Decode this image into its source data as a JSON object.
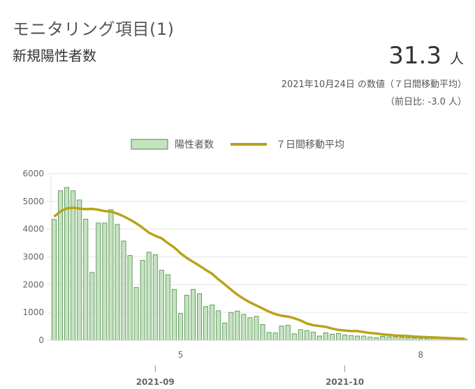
{
  "header": {
    "title": "モニタリング項目(1)",
    "subtitle": "新規陽性者数",
    "value": "31.3",
    "unit": "人",
    "note_date": "2021年10月24日 の数値（７日間移動平均）",
    "note_diff": "（前日比: -3.0 人）"
  },
  "colors": {
    "bar_fill": "#c5e3c0",
    "bar_stroke": "#4a8a45",
    "line": "#b8a31a",
    "grid": "#e6e6e6"
  },
  "chart_data": {
    "type": "bar",
    "title": "",
    "legend_position": "top-center",
    "series": [
      {
        "name": "陽性者数",
        "type": "bar",
        "values": [
          4350,
          5380,
          5500,
          5380,
          5050,
          4360,
          2440,
          4220,
          4220,
          4700,
          4170,
          3570,
          3050,
          1900,
          2880,
          3170,
          3080,
          2520,
          2360,
          1830,
          960,
          1620,
          1830,
          1670,
          1210,
          1270,
          1060,
          620,
          1000,
          1050,
          930,
          810,
          860,
          570,
          280,
          260,
          510,
          540,
          230,
          380,
          350,
          290,
          150,
          270,
          220,
          240,
          190,
          170,
          150,
          150,
          110,
          90,
          140,
          120,
          110,
          100,
          90,
          80,
          70,
          60,
          60,
          60,
          50,
          40,
          40,
          40
        ]
      },
      {
        "name": "７日間移動平均",
        "type": "line",
        "values": [
          4450,
          4640,
          4750,
          4770,
          4740,
          4720,
          4730,
          4700,
          4650,
          4630,
          4560,
          4460,
          4340,
          4210,
          4050,
          3870,
          3760,
          3670,
          3500,
          3340,
          3130,
          2960,
          2820,
          2680,
          2530,
          2390,
          2190,
          2010,
          1820,
          1640,
          1490,
          1360,
          1250,
          1140,
          1030,
          940,
          880,
          850,
          790,
          710,
          600,
          540,
          510,
          480,
          420,
          370,
          350,
          330,
          330,
          290,
          260,
          240,
          210,
          190,
          170,
          160,
          150,
          130,
          120,
          110,
          100,
          90,
          80,
          70,
          60,
          50
        ]
      }
    ],
    "y_ticks": [
      "0",
      "1000",
      "2000",
      "3000",
      "4000",
      "5000",
      "6000"
    ],
    "ylim": [
      0,
      6000
    ],
    "x_tick_labels": [
      {
        "label": "5",
        "index": 20
      },
      {
        "label": "8",
        "index": 58
      }
    ],
    "x_month_labels": [
      {
        "label": "2021-09",
        "index": 16
      },
      {
        "label": "2021-10",
        "index": 46
      }
    ],
    "grid": true
  }
}
